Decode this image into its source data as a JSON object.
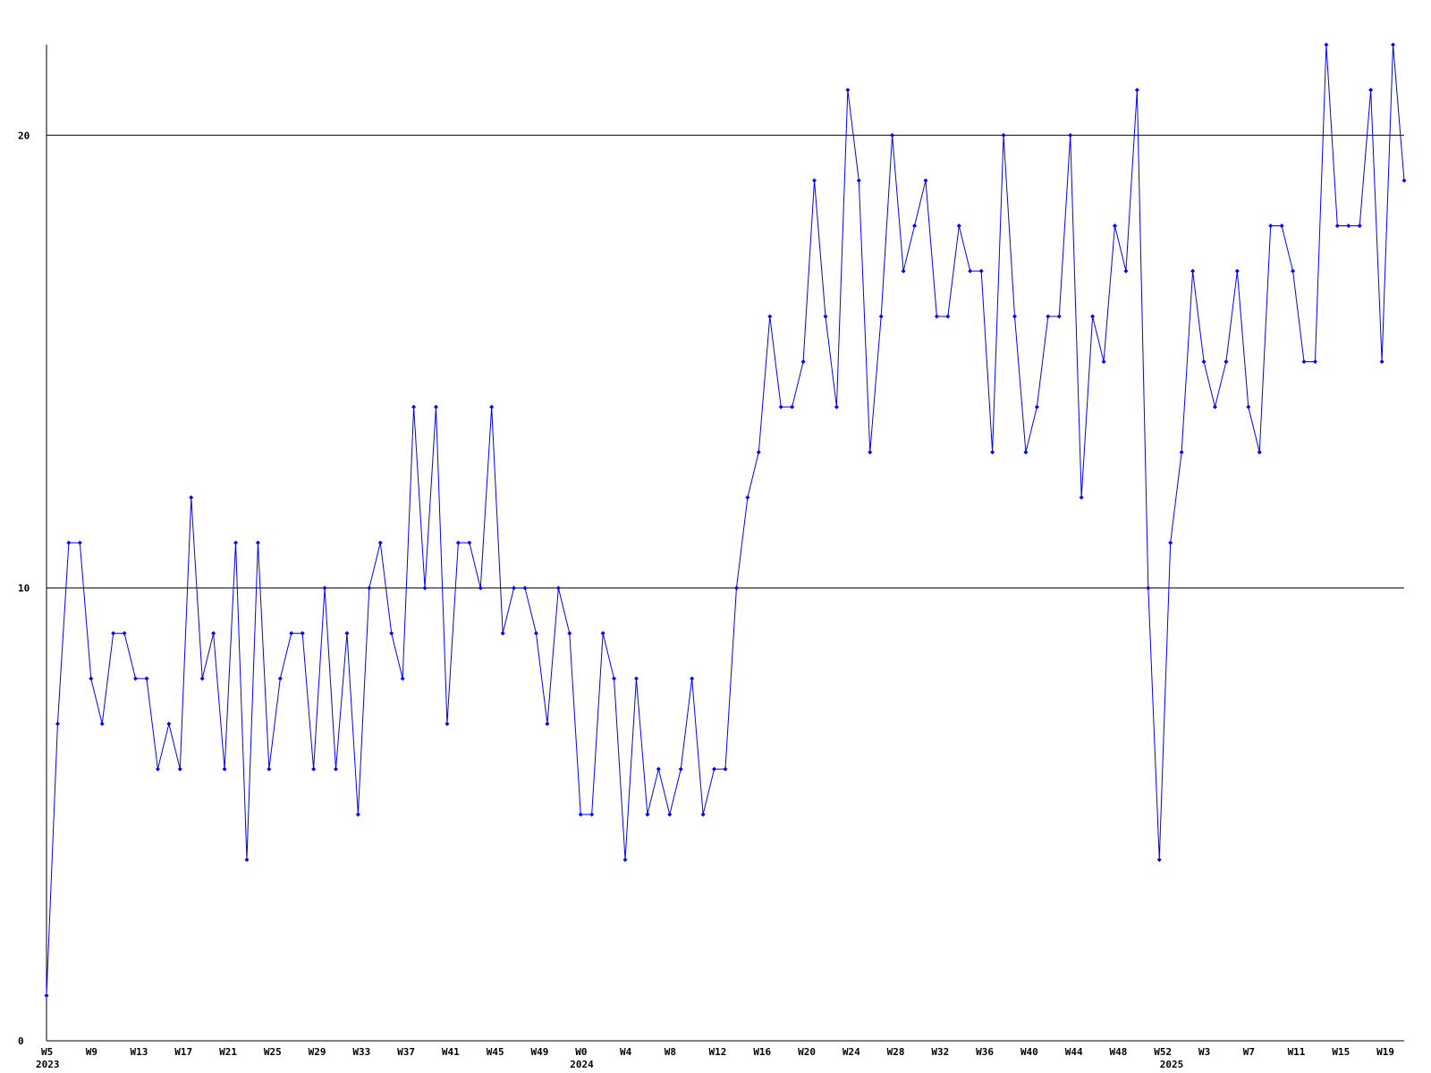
{
  "chart_data": {
    "type": "line",
    "categories": [
      "W5",
      null,
      null,
      null,
      "W9",
      null,
      null,
      null,
      "W13",
      null,
      null,
      null,
      "W17",
      null,
      null,
      null,
      "W21",
      null,
      null,
      null,
      "W25",
      null,
      null,
      null,
      "W29",
      null,
      null,
      null,
      "W33",
      null,
      null,
      null,
      "W37",
      null,
      null,
      null,
      "W41",
      null,
      null,
      null,
      "W45",
      null,
      null,
      null,
      "W49",
      null,
      null,
      null,
      "W0",
      null,
      null,
      null,
      "W4",
      null,
      null,
      null,
      "W8",
      null,
      null,
      null,
      "W12",
      null,
      null,
      null,
      "W16",
      null,
      null,
      null,
      "W20",
      null,
      null,
      null,
      "W24",
      null,
      null,
      null,
      "W28",
      null,
      null,
      null,
      "W32",
      null,
      null,
      null,
      "W36",
      null,
      null,
      null,
      "W40",
      null,
      null,
      null,
      "W44",
      null,
      null,
      null,
      "W48",
      null,
      null,
      null,
      "W52",
      null,
      null,
      null,
      "W3",
      null,
      null,
      null,
      "W7",
      null,
      null,
      null,
      "W11",
      null,
      null,
      null,
      "W15",
      null,
      null,
      null,
      "W19",
      null,
      null
    ],
    "year_labels": [
      "2023",
      null,
      null,
      null,
      null,
      null,
      null,
      null,
      null,
      null,
      null,
      null,
      null,
      null,
      null,
      null,
      null,
      null,
      null,
      null,
      null,
      null,
      null,
      null,
      null,
      null,
      null,
      null,
      null,
      null,
      null,
      null,
      null,
      null,
      null,
      null,
      null,
      null,
      null,
      null,
      null,
      null,
      null,
      null,
      null,
      null,
      null,
      null,
      "2024",
      null,
      null,
      null,
      null,
      null,
      null,
      null,
      null,
      null,
      null,
      null,
      null,
      null,
      null,
      null,
      null,
      null,
      null,
      null,
      null,
      null,
      null,
      null,
      null,
      null,
      null,
      null,
      null,
      null,
      null,
      null,
      null,
      null,
      null,
      null,
      null,
      null,
      null,
      null,
      null,
      null,
      null,
      null,
      null,
      null,
      null,
      null,
      null,
      null,
      null,
      null,
      null,
      "2025",
      null,
      null,
      null,
      null,
      null,
      null,
      null,
      null,
      null,
      null,
      null,
      null,
      null,
      null,
      null,
      null,
      null,
      null,
      null,
      null,
      null
    ],
    "series": [
      {
        "color": "#0000ff",
        "values": [
          1,
          7,
          11,
          11,
          8,
          7,
          9,
          9,
          8,
          8,
          6,
          7,
          6,
          12,
          8,
          9,
          6,
          11,
          4,
          11,
          6,
          8,
          9,
          9,
          6,
          10,
          6,
          9,
          5,
          10,
          11,
          9,
          8,
          14,
          10,
          14,
          7,
          11,
          11,
          10,
          14,
          9,
          10,
          10,
          9,
          7,
          10,
          9,
          5,
          5,
          9,
          8,
          4,
          8,
          5,
          6,
          5,
          6,
          8,
          5,
          6,
          6,
          10,
          12,
          13,
          16,
          14,
          14,
          15,
          19,
          16,
          14,
          21,
          19,
          13,
          16,
          20,
          17,
          18,
          19,
          16,
          16,
          18,
          17,
          17,
          13,
          20,
          16,
          13,
          14,
          16,
          16,
          20,
          12,
          16,
          15,
          18,
          17,
          21,
          10,
          4,
          11,
          13,
          17,
          15,
          14,
          15,
          17,
          14,
          13,
          18,
          18,
          17,
          15,
          15,
          22,
          18,
          18,
          18,
          21,
          15,
          22,
          19
        ]
      }
    ],
    "ylim": [
      0,
      22
    ],
    "yticks": [
      0,
      10,
      20
    ],
    "grid": true,
    "axis_color": "#000000"
  }
}
